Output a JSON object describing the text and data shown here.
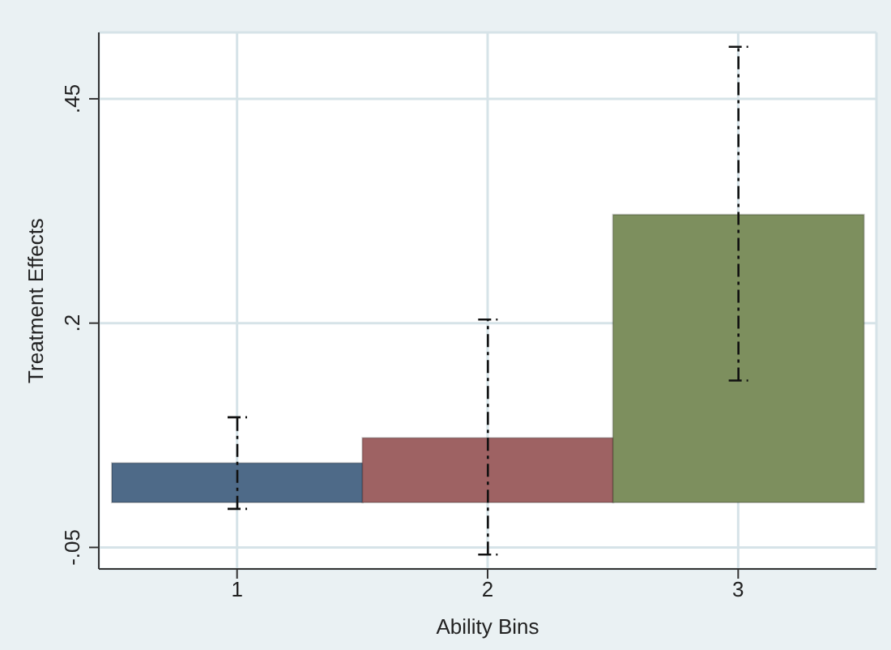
{
  "chart_data": {
    "type": "bar",
    "xlabel": "Ability Bins",
    "ylabel": "Treatment Effects",
    "categories": [
      "1",
      "2",
      "3"
    ],
    "values": [
      0.044,
      0.072,
      0.321
    ],
    "colors": [
      "#4e6a88",
      "#9e6263",
      "#7d8f5e"
    ],
    "errors": [
      [
        -0.007,
        0.095
      ],
      [
        -0.058,
        0.204
      ],
      [
        0.136,
        0.508
      ]
    ],
    "ylim": [
      -0.074,
      0.524
    ],
    "yticks": [
      {
        "value": -0.05,
        "label": "-.05"
      },
      {
        "value": 0.2,
        "label": ".2"
      },
      {
        "value": 0.45,
        "label": ".45"
      }
    ],
    "grid": true,
    "line_style": "dashed"
  }
}
